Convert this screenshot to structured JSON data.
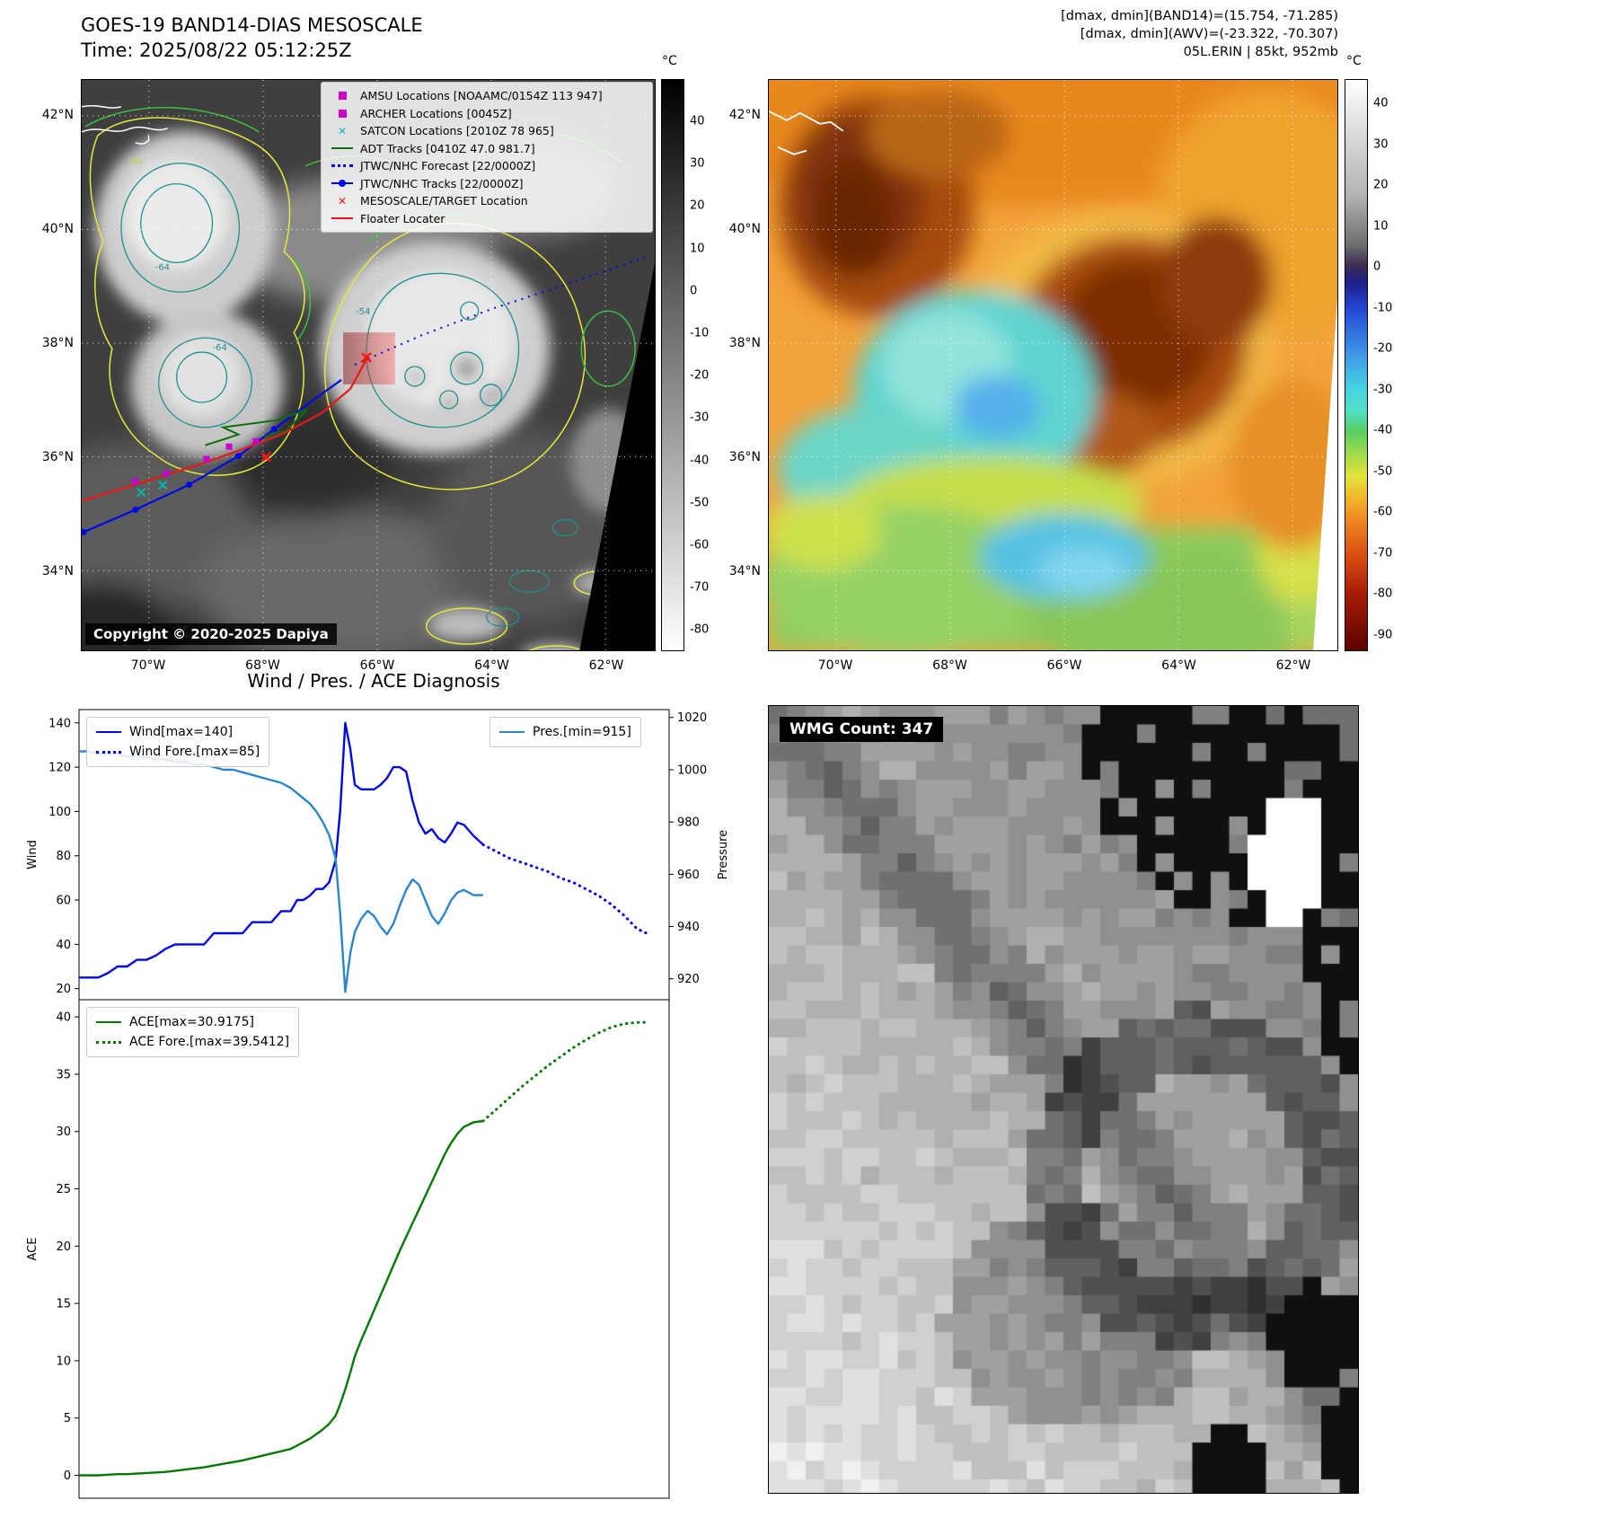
{
  "band14": {
    "title": "GOES-19 BAND14-DIAS MESOSCALE",
    "subtitle": "Time: 2025/08/22 05:12:25Z",
    "copyright": "Copyright © 2020-2025 Dapiya",
    "colorbar": {
      "unit": "°C",
      "ticks": [
        "40",
        "30",
        "20",
        "10",
        "0",
        "-10",
        "-20",
        "-30",
        "-40",
        "-50",
        "-60",
        "-70",
        "-80"
      ]
    },
    "lat_ticks": [
      "42°N",
      "40°N",
      "38°N",
      "36°N",
      "34°N"
    ],
    "lon_ticks": [
      "70°W",
      "68°W",
      "66°W",
      "64°W",
      "62°W"
    ],
    "contour_labels": [
      "-64",
      "-64",
      "-54",
      "-54"
    ],
    "legend": [
      {
        "label": "AMSU Locations [NOAAMC/0154Z 113 947]",
        "color": "#cc00cc",
        "marker": "square"
      },
      {
        "label": "ARCHER Locations [0045Z]",
        "color": "#cc00cc",
        "marker": "square"
      },
      {
        "label": "SATCON Locations [2010Z 78 965]",
        "color": "#00b8b8",
        "marker": "x",
        "glyph": "✕"
      },
      {
        "label": "ADT Tracks [0410Z 47.0 981.7]",
        "color": "#0a6e0a",
        "marker": "line"
      },
      {
        "label": "JTWC/NHC Forecast [22/0000Z]",
        "color": "#0008e6",
        "marker": "dotted-line"
      },
      {
        "label": "JTWC/NHC Tracks [22/0000Z]",
        "color": "#0008e6",
        "marker": "line-dot"
      },
      {
        "label": "MESOSCALE/TARGET Location",
        "color": "#ff1010",
        "marker": "x",
        "glyph": "✕"
      },
      {
        "label": "Floater Locater",
        "color": "#e81818",
        "marker": "line"
      }
    ]
  },
  "awv": {
    "header_lines": [
      "[dmax, dmin](BAND14)=(15.754, -71.285)",
      "[dmax, dmin](AWV)=(-23.322, -70.307)",
      "05L.ERIN | 85kt, 952mb"
    ],
    "colorbar": {
      "unit": "°C",
      "ticks": [
        "40",
        "30",
        "20",
        "10",
        "0",
        "-10",
        "-20",
        "-30",
        "-40",
        "-50",
        "-60",
        "-70",
        "-80",
        "-90"
      ]
    },
    "lat_ticks": [
      "42°N",
      "40°N",
      "38°N",
      "36°N",
      "34°N"
    ],
    "lon_ticks": [
      "70°W",
      "68°W",
      "66°W",
      "64°W",
      "62°W"
    ]
  },
  "wmg": {
    "label": "WMG Count: 347"
  },
  "diagnosis": {
    "title": "Wind / Pres. / ACE Diagnosis"
  },
  "chart_data": [
    {
      "type": "line",
      "title": "Wind / Pres. / ACE Diagnosis",
      "ylabel_left": "Wind",
      "ylabel_right": "Pressure",
      "xlim": [
        0,
        92
      ],
      "ylim_left": [
        15,
        146
      ],
      "ylim_right": [
        912,
        1023
      ],
      "yticks_left": [
        20,
        40,
        60,
        80,
        100,
        120,
        140
      ],
      "yticks_right": [
        920,
        940,
        960,
        980,
        1000,
        1020
      ],
      "legend_position": "upper left / upper right",
      "grid": false,
      "series": [
        {
          "name": "Wind[max=140]",
          "axis": "left",
          "style": "solid",
          "color": "#0008e0",
          "x": [
            0,
            1.5,
            3,
            4.5,
            6,
            7.5,
            9,
            10.5,
            12,
            13.5,
            15,
            16.5,
            18,
            19.5,
            21,
            22.5,
            24,
            25.5,
            27,
            28.5,
            30,
            31.5,
            33,
            34,
            35,
            36,
            37,
            38,
            39,
            40,
            40.7,
            41.5,
            42.3,
            43,
            44,
            45,
            46,
            47,
            48,
            49,
            50,
            51,
            52,
            53,
            54,
            55,
            56,
            57,
            58,
            59,
            60,
            61.5,
            63
          ],
          "y": [
            25,
            25,
            25,
            27,
            30,
            30,
            33,
            33,
            35,
            38,
            40,
            40,
            40,
            40,
            45,
            45,
            45,
            45,
            50,
            50,
            50,
            55,
            55,
            60,
            60,
            62,
            65,
            65,
            68,
            78,
            100,
            140,
            128,
            112,
            110,
            110,
            110,
            112,
            115,
            120,
            120,
            118,
            105,
            95,
            90,
            92,
            88,
            86,
            90,
            95,
            94,
            89,
            85
          ]
        },
        {
          "name": "Wind Fore.[max=85]",
          "axis": "left",
          "style": "dotted",
          "color": "#0008e0",
          "x": [
            63,
            65,
            67,
            69,
            71,
            73,
            75,
            77,
            79,
            81,
            83,
            85,
            87,
            88.5
          ],
          "y": [
            85,
            82,
            79,
            77,
            75,
            73,
            70,
            68,
            65,
            62,
            58,
            53,
            47,
            45
          ]
        },
        {
          "name": "Pres.[min=915]",
          "axis": "right",
          "style": "solid",
          "color": "#2e86c8",
          "x": [
            0,
            1.5,
            3,
            4.5,
            6,
            7.5,
            9,
            10.5,
            12,
            13.5,
            15,
            16.5,
            18,
            19.5,
            21,
            22.5,
            24,
            25.5,
            27,
            28.5,
            30,
            31.5,
            33,
            34,
            35,
            36,
            37,
            38,
            39,
            40,
            40.7,
            41.5,
            42.3,
            43,
            44,
            45,
            46,
            47,
            48,
            49,
            50,
            51,
            52,
            53,
            54,
            55,
            56,
            57,
            58,
            59,
            60,
            61.5,
            63
          ],
          "y": [
            1007,
            1007,
            1006,
            1006,
            1006,
            1005,
            1005,
            1005,
            1004,
            1004,
            1003,
            1003,
            1002,
            1002,
            1001,
            1000,
            1000,
            999,
            998,
            997,
            996,
            995,
            993,
            991,
            989,
            987,
            984,
            980,
            975,
            966,
            945,
            915,
            930,
            938,
            943,
            946,
            944,
            940,
            937,
            941,
            948,
            954,
            958,
            956,
            950,
            944,
            941,
            945,
            950,
            953,
            954,
            952,
            952
          ]
        }
      ]
    },
    {
      "type": "line",
      "ylabel_left": "ACE",
      "xlim": [
        0,
        92
      ],
      "ylim_left": [
        -2,
        41.5
      ],
      "yticks_left": [
        0,
        5,
        10,
        15,
        20,
        25,
        30,
        35,
        40
      ],
      "legend_position": "upper left",
      "grid": false,
      "series": [
        {
          "name": "ACE[max=30.9175]",
          "axis": "left",
          "style": "solid",
          "color": "#067806",
          "x": [
            0,
            1.5,
            3,
            4.5,
            6,
            7.5,
            9,
            10.5,
            12,
            13.5,
            15,
            16.5,
            18,
            19.5,
            21,
            22.5,
            24,
            25.5,
            27,
            28.5,
            30,
            31.5,
            33,
            34,
            35,
            36,
            37,
            38,
            39,
            40,
            40.7,
            41.5,
            42.3,
            43,
            44,
            45,
            46,
            47,
            48,
            49,
            50,
            51,
            52,
            53,
            54,
            55,
            56,
            57,
            58,
            59,
            60,
            61.5,
            63
          ],
          "y": [
            0,
            0,
            0,
            0.05,
            0.1,
            0.1,
            0.15,
            0.2,
            0.25,
            0.3,
            0.4,
            0.5,
            0.6,
            0.7,
            0.85,
            1.0,
            1.15,
            1.3,
            1.5,
            1.7,
            1.9,
            2.1,
            2.3,
            2.6,
            2.9,
            3.2,
            3.6,
            4.0,
            4.5,
            5.2,
            6.2,
            7.5,
            9.0,
            10.4,
            11.8,
            13.1,
            14.4,
            15.7,
            17.0,
            18.3,
            19.6,
            20.8,
            22.0,
            23.2,
            24.4,
            25.6,
            26.8,
            28.0,
            29.0,
            29.8,
            30.4,
            30.8,
            30.9175
          ]
        },
        {
          "name": "ACE Fore.[max=39.5412]",
          "axis": "left",
          "style": "dotted",
          "color": "#067806",
          "x": [
            63,
            65,
            67,
            69,
            71,
            73,
            75,
            77,
            79,
            81,
            83,
            85,
            87,
            88.5
          ],
          "y": [
            30.9175,
            31.9,
            32.9,
            33.9,
            34.8,
            35.7,
            36.5,
            37.3,
            38.0,
            38.6,
            39.1,
            39.4,
            39.52,
            39.5412
          ]
        }
      ]
    }
  ]
}
